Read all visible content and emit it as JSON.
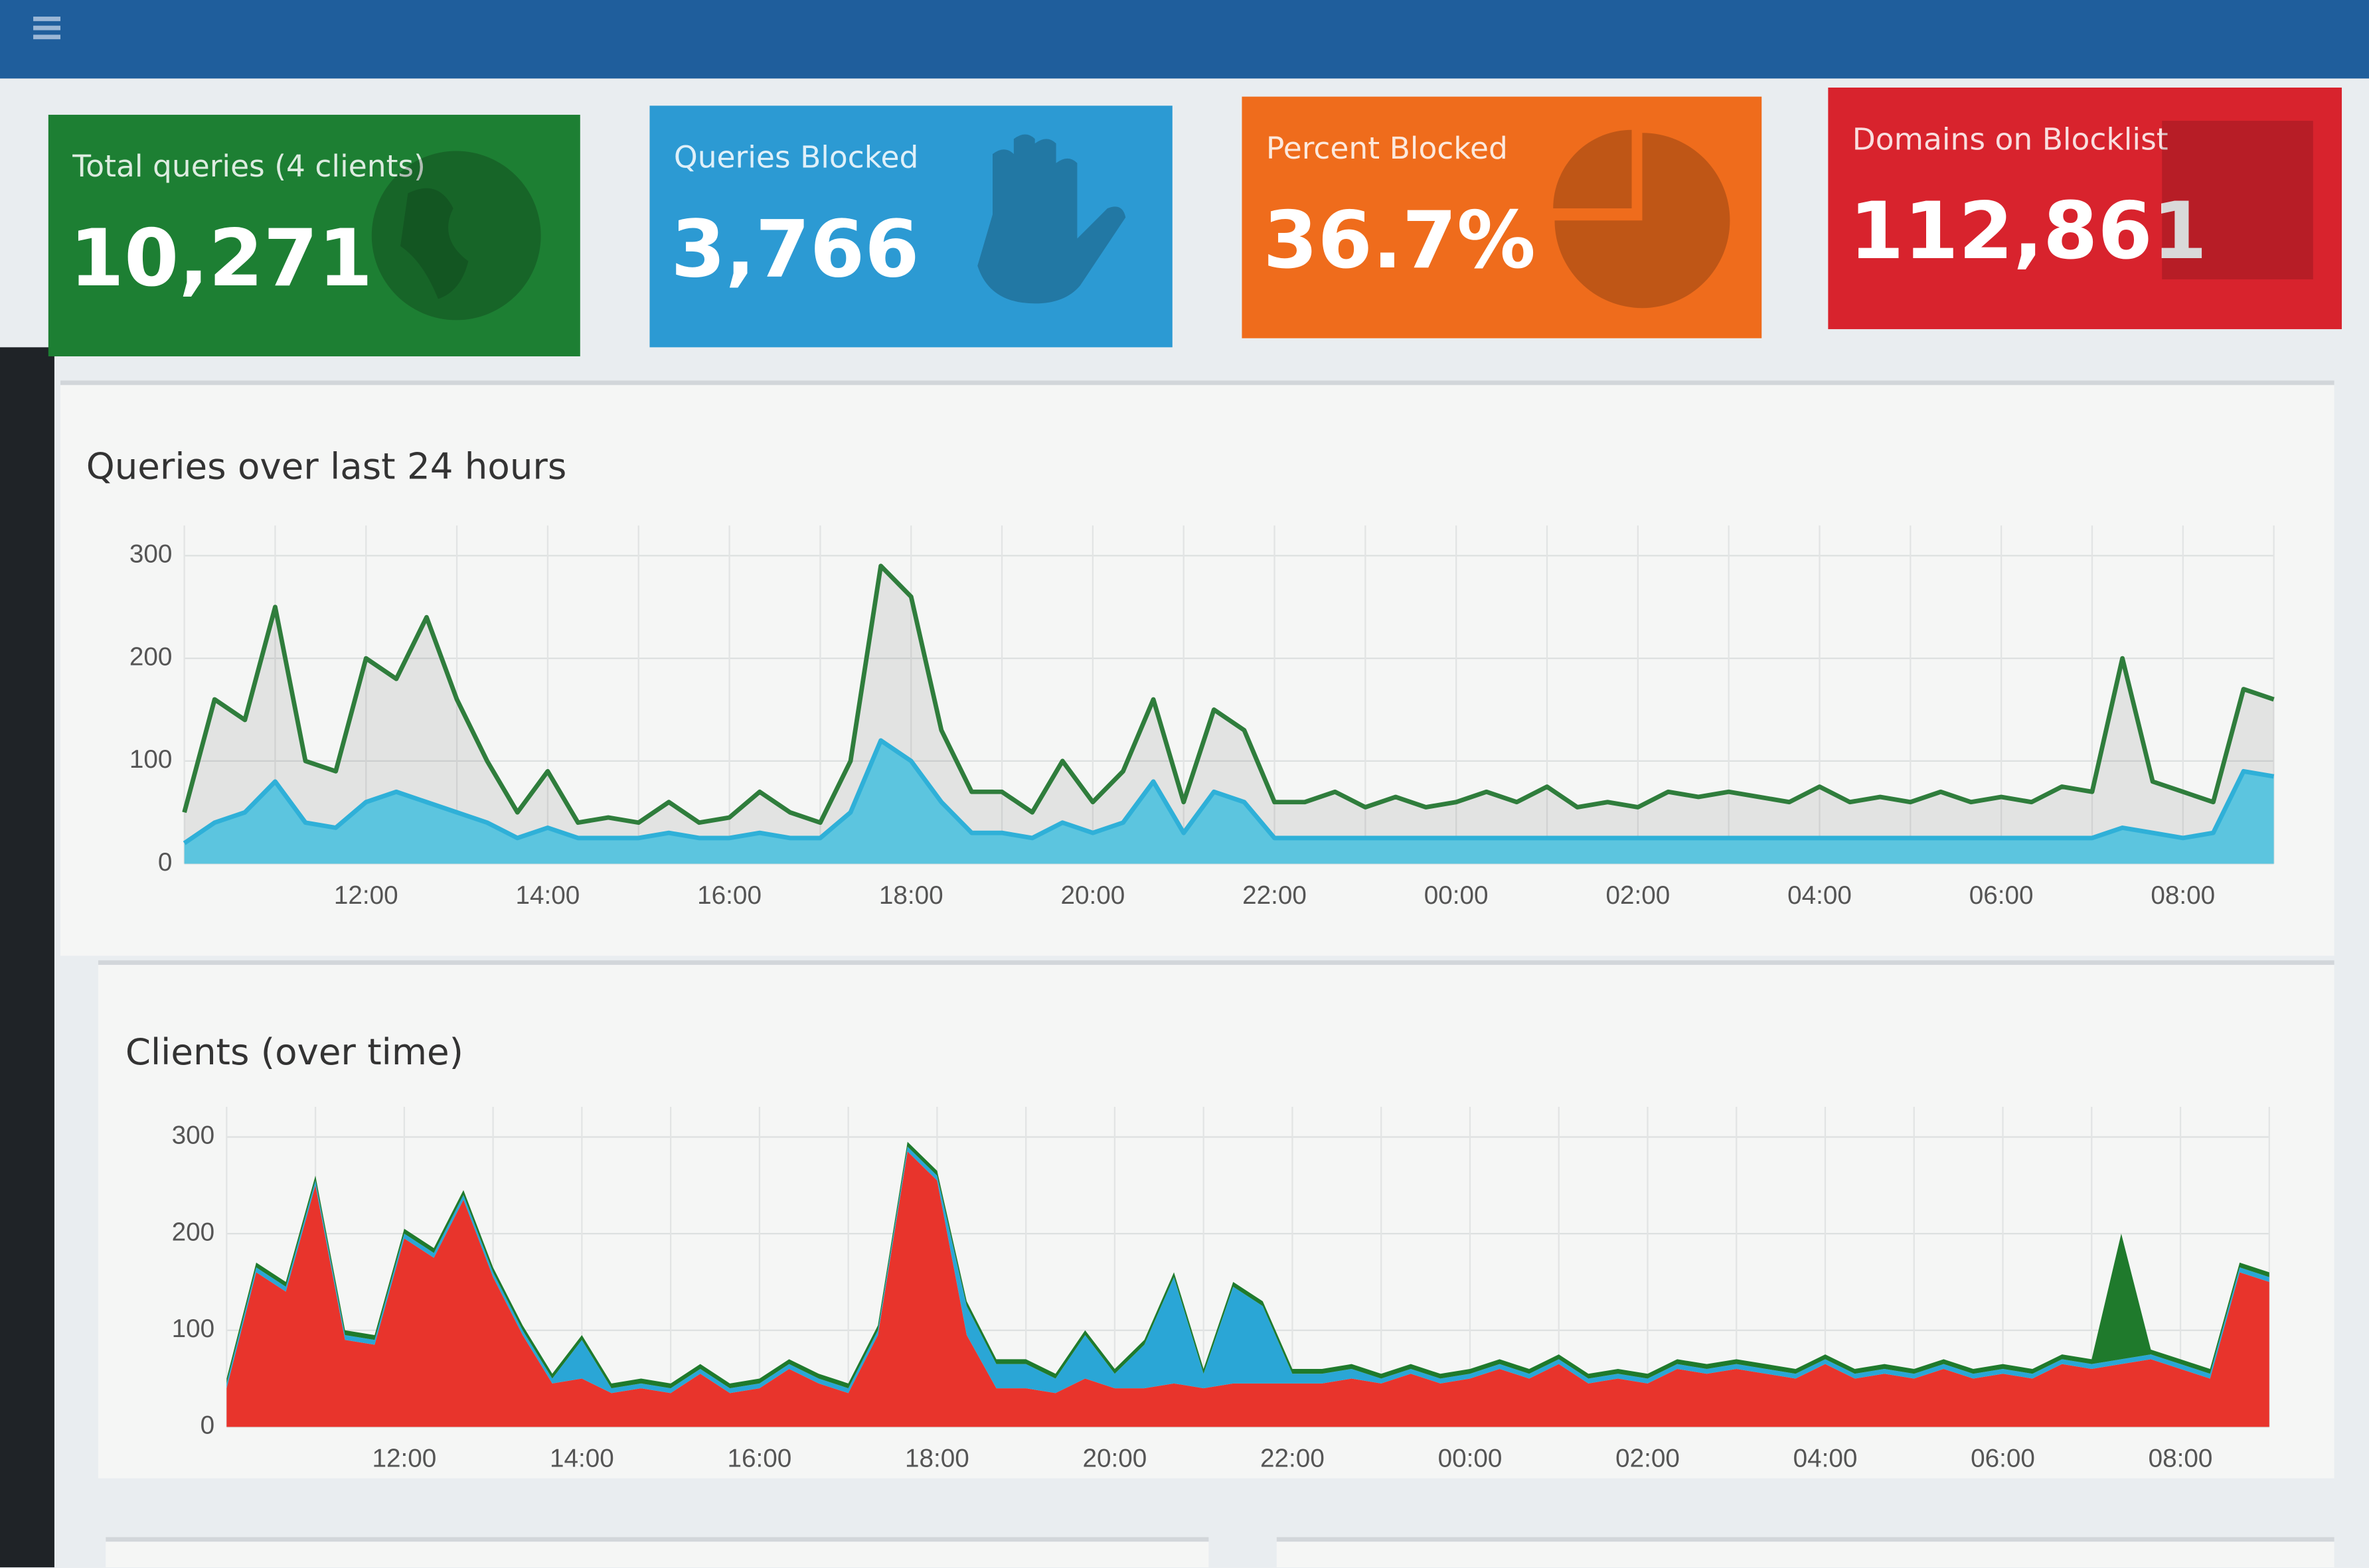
{
  "cards": [
    {
      "label": "Total queries (4 clients)",
      "value": "10,271"
    },
    {
      "label": "Queries Blocked",
      "value": "3,766"
    },
    {
      "label": "Percent Blocked",
      "value": "36.7%"
    },
    {
      "label": "Domains on Blocklist",
      "value": "112,861"
    }
  ],
  "chart_data": [
    {
      "type": "area",
      "title": "Queries over last 24 hours",
      "stacked": false,
      "grid": true,
      "categories": [
        null,
        null,
        null,
        null,
        null,
        null,
        "12:00",
        null,
        null,
        null,
        null,
        null,
        "14:00",
        null,
        null,
        null,
        null,
        null,
        "16:00",
        null,
        null,
        null,
        null,
        null,
        "18:00",
        null,
        null,
        null,
        null,
        null,
        "20:00",
        null,
        null,
        null,
        null,
        null,
        "22:00",
        null,
        null,
        null,
        null,
        null,
        "00:00",
        null,
        null,
        null,
        null,
        null,
        "02:00",
        null,
        null,
        null,
        null,
        null,
        "04:00",
        null,
        null,
        null,
        null,
        null,
        "06:00",
        null,
        null,
        null,
        null,
        null,
        "08:00",
        null,
        null,
        null
      ],
      "ylim": [
        0,
        300
      ],
      "yticks": [
        0,
        100,
        200,
        300
      ],
      "series": [
        {
          "color": "#2f7d3c",
          "fill": "rgba(60,60,60,0.10)",
          "values": [
            50,
            160,
            140,
            250,
            100,
            90,
            200,
            180,
            240,
            160,
            100,
            50,
            90,
            40,
            45,
            40,
            60,
            40,
            45,
            70,
            50,
            40,
            100,
            290,
            260,
            130,
            70,
            70,
            50,
            100,
            60,
            90,
            160,
            60,
            150,
            130,
            60,
            60,
            70,
            55,
            65,
            55,
            60,
            70,
            60,
            75,
            55,
            60,
            55,
            70,
            65,
            70,
            65,
            60,
            75,
            60,
            65,
            60,
            70,
            60,
            65,
            60,
            75,
            70,
            200,
            80,
            70,
            60,
            170,
            160
          ]
        },
        {
          "color": "#2fb0d8",
          "fill": "#5cc5df",
          "values": [
            20,
            40,
            50,
            80,
            40,
            35,
            60,
            70,
            60,
            50,
            40,
            25,
            35,
            25,
            25,
            25,
            30,
            25,
            25,
            30,
            25,
            25,
            50,
            120,
            100,
            60,
            30,
            30,
            25,
            40,
            30,
            40,
            80,
            30,
            70,
            60,
            25,
            25,
            25,
            25,
            25,
            25,
            25,
            25,
            25,
            25,
            25,
            25,
            25,
            25,
            25,
            25,
            25,
            25,
            25,
            25,
            25,
            25,
            25,
            25,
            25,
            25,
            25,
            25,
            35,
            30,
            25,
            30,
            90,
            85
          ]
        }
      ]
    },
    {
      "type": "area",
      "title": "Clients (over time)",
      "stacked": true,
      "grid": true,
      "categories": [
        null,
        null,
        null,
        null,
        null,
        null,
        "12:00",
        null,
        null,
        null,
        null,
        null,
        "14:00",
        null,
        null,
        null,
        null,
        null,
        "16:00",
        null,
        null,
        null,
        null,
        null,
        "18:00",
        null,
        null,
        null,
        null,
        null,
        "20:00",
        null,
        null,
        null,
        null,
        null,
        "22:00",
        null,
        null,
        null,
        null,
        null,
        "00:00",
        null,
        null,
        null,
        null,
        null,
        "02:00",
        null,
        null,
        null,
        null,
        null,
        "04:00",
        null,
        null,
        null,
        null,
        null,
        "06:00",
        null,
        null,
        null,
        null,
        null,
        "08:00",
        null,
        null,
        null
      ],
      "ylim": [
        0,
        300
      ],
      "yticks": [
        0,
        100,
        200,
        300
      ],
      "series": [
        {
          "color": "#e8342c",
          "values": [
            40,
            160,
            140,
            250,
            90,
            85,
            195,
            175,
            235,
            155,
            95,
            45,
            50,
            35,
            40,
            35,
            55,
            35,
            40,
            60,
            45,
            35,
            95,
            285,
            255,
            95,
            40,
            40,
            35,
            50,
            40,
            40,
            45,
            40,
            45,
            45,
            45,
            45,
            50,
            45,
            55,
            45,
            50,
            60,
            50,
            65,
            45,
            50,
            45,
            60,
            55,
            60,
            55,
            50,
            65,
            50,
            55,
            50,
            60,
            50,
            55,
            50,
            65,
            60,
            65,
            70,
            60,
            50,
            160,
            150
          ]
        },
        {
          "color": "#2aa6d6",
          "values": [
            5,
            5,
            5,
            5,
            5,
            5,
            5,
            5,
            5,
            5,
            5,
            5,
            40,
            5,
            5,
            5,
            5,
            5,
            5,
            5,
            5,
            5,
            5,
            5,
            5,
            30,
            25,
            25,
            15,
            45,
            15,
            45,
            110,
            15,
            100,
            80,
            10,
            10,
            10,
            5,
            5,
            5,
            5,
            5,
            5,
            5,
            5,
            5,
            5,
            5,
            5,
            5,
            5,
            5,
            5,
            5,
            5,
            5,
            5,
            5,
            5,
            5,
            5,
            5,
            5,
            5,
            5,
            5,
            5,
            5
          ]
        },
        {
          "color": "#1f7a2c",
          "values": [
            5,
            5,
            5,
            5,
            5,
            5,
            5,
            5,
            5,
            5,
            5,
            5,
            5,
            5,
            5,
            5,
            5,
            5,
            5,
            5,
            5,
            5,
            5,
            5,
            5,
            5,
            5,
            5,
            5,
            5,
            5,
            5,
            5,
            5,
            5,
            5,
            5,
            5,
            5,
            5,
            5,
            5,
            5,
            5,
            5,
            5,
            5,
            5,
            5,
            5,
            5,
            5,
            5,
            5,
            5,
            5,
            5,
            5,
            5,
            5,
            5,
            5,
            5,
            5,
            130,
            5,
            5,
            5,
            5,
            5
          ]
        }
      ]
    }
  ]
}
